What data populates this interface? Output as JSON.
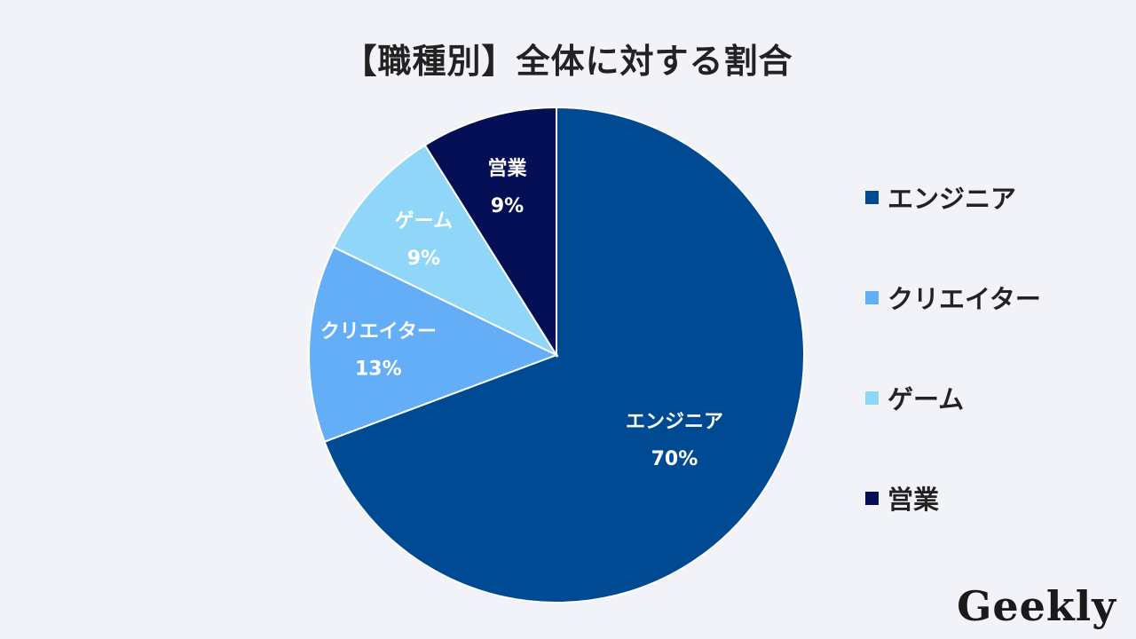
{
  "chart_data": {
    "type": "pie",
    "title": "【職種別】全体に対する割合",
    "slices": [
      {
        "label": "エンジニア",
        "value": 70,
        "display": "70%",
        "color": "#004a93"
      },
      {
        "label": "クリエイター",
        "value": 13,
        "display": "13%",
        "color": "#64adf7"
      },
      {
        "label": "ゲーム",
        "value": 9,
        "display": "9%",
        "color": "#90d6f8"
      },
      {
        "label": "営業",
        "value": 9,
        "display": "9%",
        "color": "#050f55"
      }
    ],
    "legend_position": "right"
  },
  "brand": {
    "logo_text": "Geekly"
  }
}
